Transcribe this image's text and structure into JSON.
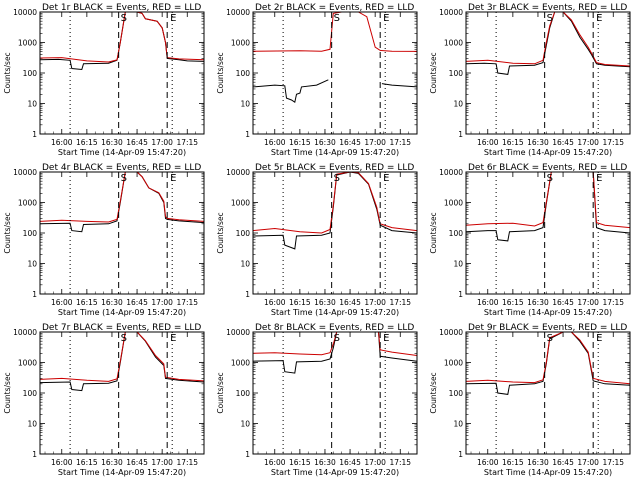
{
  "chart_data": [
    {
      "type": "line",
      "title": "Det 1r BLACK = Events, RED = LLD",
      "ylabel": "Counts/sec",
      "xlabel": "Start Time (14-Apr-09 15:47:20)",
      "yscale": "log",
      "ylim": [
        1,
        10000
      ],
      "xlim": [
        "15:47",
        "17:25"
      ],
      "x_ticks": [
        "16:00",
        "16:15",
        "16:30",
        "16:45",
        "17:00",
        "17:15"
      ],
      "y_ticks": [
        "1",
        "10",
        "100",
        "1000",
        "10000"
      ],
      "marker_labels": [
        "S",
        "E"
      ],
      "series": [
        {
          "color": "#000000",
          "x": [
            "15:47",
            "15:58",
            "16:05",
            "16:06",
            "16:12",
            "16:13",
            "16:28",
            "16:33",
            "16:35",
            "16:38",
            "16:40",
            "16:45",
            "16:48",
            "16:50",
            "16:57",
            "17:00",
            "17:02",
            "17:03",
            "17:10",
            "17:15",
            "17:25"
          ],
          "y": [
            270,
            280,
            260,
            140,
            130,
            200,
            210,
            260,
            1000,
            10000,
            10000,
            10000,
            9000,
            6000,
            5000,
            3000,
            1000,
            300,
            270,
            250,
            240
          ]
        },
        {
          "color": "#cc0000",
          "x": [
            "15:47",
            "16:00",
            "16:15",
            "16:28",
            "16:33",
            "16:35",
            "16:38",
            "16:40",
            "16:45",
            "16:48",
            "16:50",
            "16:57",
            "17:00",
            "17:02",
            "17:03",
            "17:10",
            "17:25"
          ],
          "y": [
            310,
            320,
            250,
            230,
            270,
            1000,
            10000,
            10000,
            10000,
            9000,
            6000,
            5000,
            3000,
            1000,
            320,
            290,
            270
          ]
        }
      ]
    },
    {
      "type": "line",
      "title": "Det 2r BLACK = Events, RED = LLD",
      "ylabel": "Counts/sec",
      "xlabel": "Start Time (14-Apr-09 15:47:20)",
      "yscale": "log",
      "ylim": [
        1,
        10000
      ],
      "xlim": [
        "15:47",
        "17:25"
      ],
      "x_ticks": [
        "16:00",
        "16:15",
        "16:30",
        "16:45",
        "17:00",
        "17:15"
      ],
      "y_ticks": [
        "1",
        "10",
        "100",
        "1000",
        "10000"
      ],
      "marker_labels": [
        "S",
        "E"
      ],
      "series": [
        {
          "color": "#000000",
          "x": [
            "15:47",
            "16:00",
            "16:06",
            "16:07",
            "16:10",
            "16:12",
            "16:13",
            "16:15",
            "16:16",
            "16:25",
            "16:32",
            "16:33",
            "17:03",
            "17:04",
            "17:10",
            "17:25"
          ],
          "y": [
            35,
            40,
            38,
            15,
            13,
            11,
            20,
            22,
            35,
            40,
            60,
            null,
            null,
            45,
            40,
            35
          ]
        },
        {
          "color": "#cc0000",
          "x": [
            "15:47",
            "16:15",
            "16:28",
            "16:33",
            "16:35",
            "16:40",
            "16:50",
            "16:55",
            "17:00",
            "17:03",
            "17:10",
            "17:25"
          ],
          "y": [
            520,
            540,
            520,
            600,
            9000,
            10000,
            10000,
            7000,
            700,
            550,
            520,
            510
          ]
        }
      ]
    },
    {
      "type": "line",
      "title": "Det 3r BLACK = Events, RED = LLD",
      "ylabel": "Counts/sec",
      "xlabel": "Start Time (14-Apr-09 15:47:20)",
      "yscale": "log",
      "ylim": [
        1,
        10000
      ],
      "xlim": [
        "15:47",
        "17:25"
      ],
      "x_ticks": [
        "16:00",
        "16:15",
        "16:30",
        "16:45",
        "17:00",
        "17:15"
      ],
      "y_ticks": [
        "1",
        "10",
        "100",
        "1000",
        "10000"
      ],
      "marker_labels": [
        "S",
        "E"
      ],
      "series": [
        {
          "color": "#000000",
          "x": [
            "15:47",
            "15:58",
            "16:05",
            "16:06",
            "16:12",
            "16:13",
            "16:28",
            "16:33",
            "16:35",
            "16:37",
            "16:40",
            "16:45",
            "16:50",
            "16:55",
            "17:00",
            "17:02",
            "17:05",
            "17:10",
            "17:25"
          ],
          "y": [
            200,
            210,
            200,
            100,
            90,
            170,
            180,
            220,
            800,
            3000,
            10000,
            10000,
            5000,
            1500,
            600,
            400,
            200,
            180,
            160
          ]
        },
        {
          "color": "#cc0000",
          "x": [
            "15:47",
            "16:00",
            "16:15",
            "16:28",
            "16:33",
            "16:35",
            "16:37",
            "16:40",
            "16:45",
            "16:50",
            "16:55",
            "17:00",
            "17:02",
            "17:05",
            "17:10",
            "17:25"
          ],
          "y": [
            240,
            260,
            210,
            200,
            260,
            1000,
            3500,
            10000,
            10000,
            5500,
            1800,
            700,
            450,
            220,
            190,
            170
          ]
        }
      ]
    },
    {
      "type": "line",
      "title": "Det 4r BLACK = Events, RED = LLD",
      "ylabel": "Counts/sec",
      "xlabel": "Start Time (14-Apr-09 15:47:20)",
      "yscale": "log",
      "ylim": [
        1,
        10000
      ],
      "xlim": [
        "15:47",
        "17:25"
      ],
      "x_ticks": [
        "16:00",
        "16:15",
        "16:30",
        "16:45",
        "17:00",
        "17:15"
      ],
      "y_ticks": [
        "1",
        "10",
        "100",
        "1000",
        "10000"
      ],
      "marker_labels": [
        "S",
        "E"
      ],
      "series": [
        {
          "color": "#000000",
          "x": [
            "15:47",
            "16:05",
            "16:06",
            "16:12",
            "16:13",
            "16:28",
            "16:33",
            "16:35",
            "16:38",
            "16:45",
            "16:48",
            "16:52",
            "16:58",
            "17:01",
            "17:02",
            "17:03",
            "17:10",
            "17:25"
          ],
          "y": [
            200,
            210,
            120,
            110,
            190,
            200,
            250,
            1000,
            10000,
            10000,
            7000,
            3000,
            2000,
            1000,
            300,
            280,
            250,
            220
          ]
        },
        {
          "color": "#cc0000",
          "x": [
            "15:47",
            "16:00",
            "16:15",
            "16:28",
            "16:33",
            "16:35",
            "16:38",
            "16:45",
            "16:48",
            "16:52",
            "16:58",
            "17:01",
            "17:02",
            "17:03",
            "17:10",
            "17:25"
          ],
          "y": [
            240,
            260,
            240,
            230,
            280,
            1100,
            10000,
            10000,
            7000,
            3000,
            2100,
            1100,
            350,
            300,
            270,
            240
          ]
        }
      ]
    },
    {
      "type": "line",
      "title": "Det 5r BLACK = Events, RED = LLD",
      "ylabel": "Counts/sec",
      "xlabel": "Start Time (14-Apr-09 15:47:20)",
      "yscale": "log",
      "ylim": [
        1,
        10000
      ],
      "xlim": [
        "15:47",
        "17:25"
      ],
      "x_ticks": [
        "16:00",
        "16:15",
        "16:30",
        "16:45",
        "17:00",
        "17:15"
      ],
      "y_ticks": [
        "1",
        "10",
        "100",
        "1000",
        "10000"
      ],
      "marker_labels": [
        "S",
        "E"
      ],
      "series": [
        {
          "color": "#000000",
          "x": [
            "15:47",
            "16:05",
            "16:06",
            "16:12",
            "16:13",
            "16:28",
            "16:33",
            "16:35",
            "16:37",
            "16:45",
            "16:50",
            "16:56",
            "17:01",
            "17:03",
            "17:10",
            "17:25"
          ],
          "y": [
            80,
            85,
            40,
            30,
            80,
            85,
            100,
            700,
            8000,
            10000,
            9000,
            4000,
            600,
            180,
            120,
            100
          ]
        },
        {
          "color": "#cc0000",
          "x": [
            "15:47",
            "16:00",
            "16:15",
            "16:28",
            "16:33",
            "16:35",
            "16:37",
            "16:45",
            "16:50",
            "16:56",
            "17:01",
            "17:03",
            "17:10",
            "17:25"
          ],
          "y": [
            120,
            140,
            110,
            100,
            130,
            800,
            8500,
            10000,
            9500,
            4200,
            700,
            200,
            150,
            120
          ]
        }
      ]
    },
    {
      "type": "line",
      "title": "Det 6r BLACK = Events, RED = LLD",
      "ylabel": "Counts/sec",
      "xlabel": "Start Time (14-Apr-09 15:47:20)",
      "yscale": "log",
      "ylim": [
        1,
        10000
      ],
      "xlim": [
        "15:47",
        "17:25"
      ],
      "x_ticks": [
        "16:00",
        "16:15",
        "16:30",
        "16:45",
        "17:00",
        "17:15"
      ],
      "y_ticks": [
        "1",
        "10",
        "100",
        "1000",
        "10000"
      ],
      "marker_labels": [
        "S",
        "E"
      ],
      "series": [
        {
          "color": "#000000",
          "x": [
            "15:47",
            "16:00",
            "16:05",
            "16:06",
            "16:12",
            "16:13",
            "16:28",
            "16:33",
            "16:35",
            "16:38",
            "16:45",
            "16:55",
            "17:03",
            "17:05",
            "17:10",
            "17:25"
          ],
          "y": [
            110,
            120,
            120,
            60,
            55,
            110,
            120,
            150,
            900,
            10000,
            10000,
            10000,
            10000,
            150,
            120,
            100
          ]
        },
        {
          "color": "#cc0000",
          "x": [
            "15:47",
            "16:00",
            "16:15",
            "16:28",
            "16:33",
            "16:35",
            "16:38",
            "16:45",
            "16:55",
            "17:03",
            "17:05",
            "17:10",
            "17:25"
          ],
          "y": [
            180,
            200,
            210,
            170,
            220,
            1000,
            10000,
            10000,
            10000,
            10000,
            220,
            180,
            150
          ]
        }
      ]
    },
    {
      "type": "line",
      "title": "Det 7r BLACK = Events, RED = LLD",
      "ylabel": "Counts/sec",
      "xlabel": "Start Time (14-Apr-09 15:47:20)",
      "yscale": "log",
      "ylim": [
        1,
        10000
      ],
      "xlim": [
        "15:47",
        "17:25"
      ],
      "x_ticks": [
        "16:00",
        "16:15",
        "16:30",
        "16:45",
        "17:00",
        "17:15"
      ],
      "y_ticks": [
        "1",
        "10",
        "100",
        "1000",
        "10000"
      ],
      "marker_labels": [
        "S",
        "E"
      ],
      "series": [
        {
          "color": "#000000",
          "x": [
            "15:47",
            "16:05",
            "16:06",
            "16:12",
            "16:13",
            "16:28",
            "16:33",
            "16:35",
            "16:38",
            "16:45",
            "16:50",
            "16:56",
            "17:01",
            "17:02",
            "17:10",
            "17:25"
          ],
          "y": [
            220,
            230,
            130,
            120,
            200,
            210,
            250,
            1000,
            10000,
            10000,
            5000,
            1500,
            800,
            300,
            260,
            230
          ]
        },
        {
          "color": "#cc0000",
          "x": [
            "15:47",
            "16:00",
            "16:15",
            "16:28",
            "16:33",
            "16:35",
            "16:38",
            "16:45",
            "16:50",
            "16:56",
            "17:01",
            "17:02",
            "17:10",
            "17:25"
          ],
          "y": [
            280,
            300,
            260,
            240,
            290,
            1100,
            10000,
            10000,
            5200,
            1700,
            900,
            330,
            280,
            250
          ]
        }
      ]
    },
    {
      "type": "line",
      "title": "Det 8r BLACK = Events, RED = LLD",
      "ylabel": "Counts/sec",
      "xlabel": "Start Time (14-Apr-09 15:47:20)",
      "yscale": "log",
      "ylim": [
        1,
        10000
      ],
      "xlim": [
        "15:47",
        "17:25"
      ],
      "x_ticks": [
        "16:00",
        "16:15",
        "16:30",
        "16:45",
        "17:00",
        "17:15"
      ],
      "y_ticks": [
        "1",
        "10",
        "100",
        "1000",
        "10000"
      ],
      "marker_labels": [
        "S",
        "E"
      ],
      "series": [
        {
          "color": "#000000",
          "x": [
            "15:47",
            "16:05",
            "16:06",
            "16:12",
            "16:13",
            "16:28",
            "16:33",
            "16:35",
            "16:37",
            "16:45",
            "16:55",
            "17:02",
            "17:03",
            "17:10",
            "17:25"
          ],
          "y": [
            1100,
            1150,
            500,
            450,
            1050,
            1100,
            1300,
            3000,
            10000,
            10000,
            10000,
            10000,
            1600,
            1400,
            1100
          ]
        },
        {
          "color": "#cc0000",
          "x": [
            "15:47",
            "16:00",
            "16:15",
            "16:28",
            "16:33",
            "16:35",
            "16:37",
            "16:45",
            "16:55",
            "17:02",
            "17:03",
            "17:10",
            "17:25"
          ],
          "y": [
            2000,
            2100,
            1900,
            1800,
            2100,
            4000,
            10000,
            10000,
            10000,
            10000,
            2600,
            2200,
            1700
          ]
        }
      ]
    },
    {
      "type": "line",
      "title": "Det 9r BLACK = Events, RED = LLD",
      "ylabel": "Counts/sec",
      "xlabel": "Start Time (14-Apr-09 15:47:20)",
      "yscale": "log",
      "ylim": [
        1,
        10000
      ],
      "xlim": [
        "15:47",
        "17:25"
      ],
      "x_ticks": [
        "16:00",
        "16:15",
        "16:30",
        "16:45",
        "17:00",
        "17:15"
      ],
      "y_ticks": [
        "1",
        "10",
        "100",
        "1000",
        "10000"
      ],
      "marker_labels": [
        "S",
        "E"
      ],
      "series": [
        {
          "color": "#000000",
          "x": [
            "15:47",
            "16:05",
            "16:06",
            "16:12",
            "16:13",
            "16:28",
            "16:33",
            "16:35",
            "16:37",
            "16:45",
            "16:50",
            "16:55",
            "17:00",
            "17:03",
            "17:10",
            "17:25"
          ],
          "y": [
            200,
            210,
            100,
            90,
            180,
            200,
            240,
            900,
            6000,
            10000,
            10000,
            5000,
            2000,
            250,
            200,
            180
          ]
        },
        {
          "color": "#cc0000",
          "x": [
            "15:47",
            "16:00",
            "16:15",
            "16:28",
            "16:33",
            "16:35",
            "16:37",
            "16:45",
            "16:50",
            "16:55",
            "17:00",
            "17:03",
            "17:10",
            "17:25"
          ],
          "y": [
            240,
            260,
            230,
            220,
            270,
            1000,
            6500,
            10000,
            10000,
            5500,
            2200,
            300,
            240,
            200
          ]
        }
      ]
    }
  ]
}
